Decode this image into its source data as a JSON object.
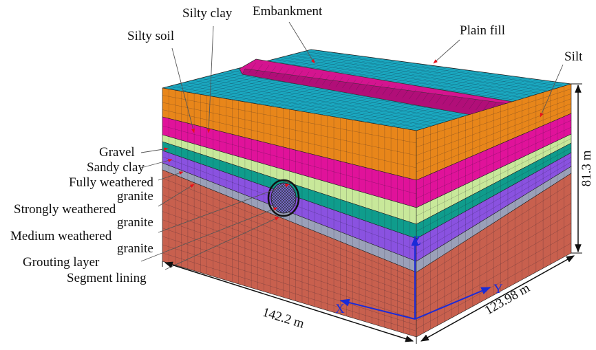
{
  "labels": [
    {
      "lines": [
        "Silty clay"
      ]
    },
    {
      "lines": [
        "Embankment"
      ]
    },
    {
      "lines": [
        "Silty soil"
      ]
    },
    {
      "lines": [
        "Plain fill"
      ]
    },
    {
      "lines": [
        "Silt"
      ]
    },
    {
      "lines": [
        "Gravel"
      ]
    },
    {
      "lines": [
        "Sandy clay"
      ]
    },
    {
      "lines": [
        "Fully weathered",
        "granite"
      ]
    },
    {
      "lines": [
        "Strongly weathered",
        "granite"
      ]
    },
    {
      "lines": [
        "Medium weathered",
        "granite"
      ]
    },
    {
      "lines": [
        "Grouting layer"
      ]
    },
    {
      "lines": [
        "Segment lining"
      ]
    }
  ],
  "dimensions": [
    "142.2 m",
    "123.98 m",
    "81.3 m"
  ],
  "axes": [
    "X",
    "Y",
    "Z"
  ]
}
